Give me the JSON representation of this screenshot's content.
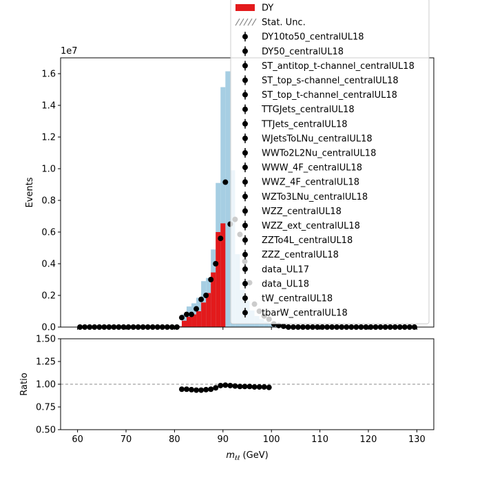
{
  "chart_data": [
    {
      "type": "histogram",
      "panel": "main",
      "ylabel": "Events",
      "y_offset_label": "1e7",
      "y_scale": 10000000,
      "xlim": [
        56.5,
        133.5
      ],
      "ylim": [
        0,
        1.7
      ],
      "yticks": [
        0.0,
        0.2,
        0.4,
        0.6,
        0.8,
        1.0,
        1.2,
        1.4,
        1.6
      ],
      "ytick_labels": [
        "0.0",
        "0.2",
        "0.4",
        "0.6",
        "0.8",
        "1.0",
        "1.2",
        "1.4",
        "1.6"
      ],
      "xticks": [
        60,
        70,
        80,
        90,
        100,
        110,
        120,
        130
      ],
      "bin_edges": [
        60,
        61,
        62,
        63,
        64,
        65,
        66,
        67,
        68,
        69,
        70,
        71,
        72,
        73,
        74,
        75,
        76,
        77,
        78,
        79,
        80,
        81,
        82,
        83,
        84,
        85,
        86,
        87,
        88,
        89,
        90,
        91,
        92,
        93,
        94,
        95,
        96,
        97,
        98,
        99,
        100,
        101,
        102,
        103,
        104,
        105,
        106,
        107,
        108,
        109,
        110,
        111,
        112,
        113,
        114,
        115,
        116,
        117,
        118,
        119,
        120,
        121,
        122,
        123,
        124,
        125,
        126,
        127,
        128,
        129,
        130
      ],
      "stack_bin_edges": [
        80.5,
        81.5,
        82.5,
        83.5,
        84.5,
        85.5,
        86.5,
        87.5,
        88.5,
        89.5,
        90.5,
        91.5,
        92.5,
        93.5,
        94.5,
        95.5,
        96.5,
        97.5,
        98.5,
        99.5,
        100.5,
        101.5
      ],
      "stack_total": [
        0.008,
        0.08,
        0.13,
        0.15,
        0.185,
        0.29,
        0.31,
        0.49,
        0.91,
        1.515,
        1.615,
        0.99,
        0.46,
        0.235,
        0.165,
        0.105,
        0.07,
        0.05,
        0.035,
        0.025,
        0.015
      ],
      "dy": [
        0.004,
        0.04,
        0.065,
        0.08,
        0.1,
        0.155,
        0.215,
        0.345,
        0.6,
        0.655,
        0.0,
        0.0,
        0.0,
        0.0,
        0.0,
        0.0,
        0.0,
        0.0,
        0.0,
        0.0,
        0.0
      ],
      "data_x": [
        60.5,
        61.5,
        62.5,
        63.5,
        64.5,
        65.5,
        66.5,
        67.5,
        68.5,
        69.5,
        70.5,
        71.5,
        72.5,
        73.5,
        74.5,
        75.5,
        76.5,
        77.5,
        78.5,
        79.5,
        80.5,
        81.5,
        82.5,
        83.5,
        84.5,
        85.5,
        86.5,
        87.5,
        88.5,
        89.5,
        90.5,
        91.5,
        92.5,
        93.5,
        94.5,
        95.5,
        96.5,
        97.5,
        98.5,
        99.5,
        100.5,
        101.5,
        102.5,
        103.5,
        104.5,
        105.5,
        106.5,
        107.5,
        108.5,
        109.5,
        110.5,
        111.5,
        112.5,
        113.5,
        114.5,
        115.5,
        116.5,
        117.5,
        118.5,
        119.5,
        120.5,
        121.5,
        122.5,
        123.5,
        124.5,
        125.5,
        126.5,
        127.5,
        128.5,
        129.5
      ],
      "data_y": [
        0,
        0,
        0,
        0,
        0,
        0,
        0,
        0,
        0,
        0,
        0,
        0,
        0,
        0,
        0,
        0,
        0,
        0,
        0,
        0,
        0,
        0.06,
        0.08,
        0.08,
        0.115,
        0.175,
        0.2,
        0.3,
        0.4,
        0.56,
        0.915,
        0.65,
        0.68,
        0.585,
        0.415,
        0.28,
        0.145,
        0.1,
        0.07,
        0.05,
        0.02,
        0.01,
        0.005,
        0,
        0,
        0,
        0,
        0,
        0,
        0,
        0,
        0,
        0,
        0,
        0,
        0,
        0,
        0,
        0,
        0,
        0,
        0,
        0,
        0,
        0,
        0,
        0,
        0,
        0,
        0
      ],
      "legend": {
        "placement": "upper right",
        "entries": [
          {
            "label": "DY",
            "kind": "patch",
            "color": "#e31a1c"
          },
          {
            "label": "Stat. Unc.",
            "kind": "hatch",
            "color": "#888888"
          },
          {
            "label": "DY10to50_centralUL18",
            "kind": "marker"
          },
          {
            "label": "DY50_centralUL18",
            "kind": "marker"
          },
          {
            "label": "ST_antitop_t-channel_centralUL18",
            "kind": "marker"
          },
          {
            "label": "ST_top_s-channel_centralUL18",
            "kind": "marker"
          },
          {
            "label": "ST_top_t-channel_centralUL18",
            "kind": "marker"
          },
          {
            "label": "TTGJets_centralUL18",
            "kind": "marker"
          },
          {
            "label": "TTJets_centralUL18",
            "kind": "marker"
          },
          {
            "label": "WJetsToLNu_centralUL18",
            "kind": "marker"
          },
          {
            "label": "WWTo2L2Nu_centralUL18",
            "kind": "marker"
          },
          {
            "label": "WWW_4F_centralUL18",
            "kind": "marker"
          },
          {
            "label": "WWZ_4F_centralUL18",
            "kind": "marker"
          },
          {
            "label": "WZTo3LNu_centralUL18",
            "kind": "marker"
          },
          {
            "label": "WZZ_centralUL18",
            "kind": "marker"
          },
          {
            "label": "WZZ_ext_centralUL18",
            "kind": "marker"
          },
          {
            "label": "ZZTo4L_centralUL18",
            "kind": "marker"
          },
          {
            "label": "ZZZ_centralUL18",
            "kind": "marker"
          },
          {
            "label": "data_UL17",
            "kind": "marker"
          },
          {
            "label": "data_UL18",
            "kind": "marker"
          },
          {
            "label": "tW_centralUL18",
            "kind": "marker"
          },
          {
            "label": "tbarW_centralUL18",
            "kind": "marker"
          }
        ]
      },
      "colors": {
        "dy": "#e31a1c",
        "stack": "#a6cee3",
        "data": "#000000",
        "hatch": "#888888"
      }
    },
    {
      "type": "scatter",
      "panel": "ratio",
      "ylabel": "Ratio",
      "xlabel_var": "m",
      "xlabel_sub": "ℓℓ",
      "xlabel_unit": " (GeV)",
      "xlim": [
        56.5,
        133.5
      ],
      "ylim": [
        0.5,
        1.5
      ],
      "yticks": [
        0.5,
        0.75,
        1.0,
        1.25,
        1.5
      ],
      "ytick_labels": [
        "0.50",
        "0.75",
        "1.00",
        "1.25",
        "1.50"
      ],
      "xticks": [
        60,
        70,
        80,
        90,
        100,
        110,
        120,
        130
      ],
      "xtick_labels": [
        "60",
        "70",
        "80",
        "90",
        "100",
        "110",
        "120",
        "130"
      ],
      "reference_line": 1.0,
      "x": [
        81.5,
        82.5,
        83.5,
        84.5,
        85.5,
        86.5,
        87.5,
        88.5,
        89.5,
        90.5,
        91.5,
        92.5,
        93.5,
        94.5,
        95.5,
        96.5,
        97.5,
        98.5,
        99.5
      ],
      "y": [
        0.945,
        0.945,
        0.94,
        0.935,
        0.935,
        0.94,
        0.945,
        0.96,
        0.985,
        0.99,
        0.985,
        0.98,
        0.975,
        0.975,
        0.975,
        0.97,
        0.97,
        0.97,
        0.965
      ]
    }
  ]
}
